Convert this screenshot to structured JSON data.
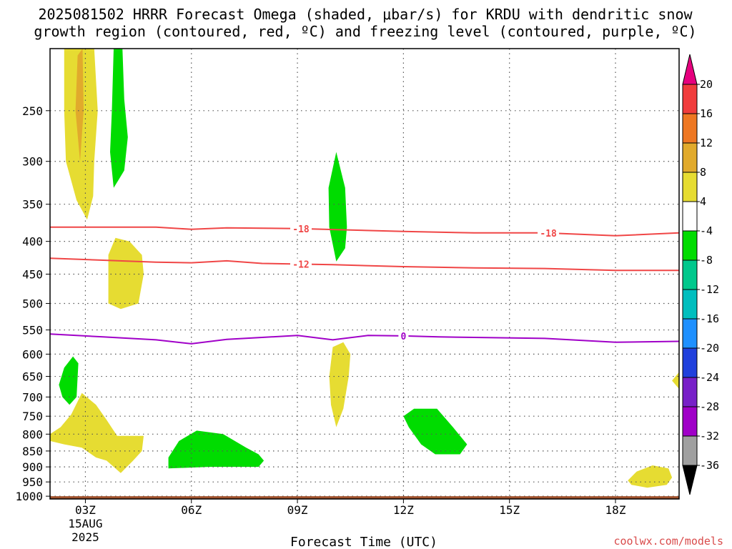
{
  "title": {
    "line1": "2025081502 HRRR Forecast Omega (shaded, μbar/s) for KRDU with dendritic snow",
    "line2": "growth region (contoured, red, ºC) and freezing level (contoured, purple, ºC)"
  },
  "credit": "coolwx.com/models",
  "chart_data": {
    "type": "contour",
    "title": "2025081502 HRRR Forecast Omega (shaded, μbar/s) for KRDU with dendritic snow growth region (contoured, red, ºC) and freezing level (contoured, purple, ºC)",
    "xlabel": "Forecast Time (UTC)",
    "ylabel": "",
    "x_unit": "forecast hour from 2025-08-15 02Z",
    "xlim": [
      0,
      17.8
    ],
    "ylim_hPa": [
      1010,
      200
    ],
    "y_scale": "log-pressure (inverted)",
    "grid": "dotted",
    "x_ticks": [
      {
        "hour": 1,
        "label": "03Z",
        "sub1": "15AUG",
        "sub2": "2025"
      },
      {
        "hour": 4,
        "label": "06Z",
        "sub1": "",
        "sub2": ""
      },
      {
        "hour": 7,
        "label": "09Z",
        "sub1": "",
        "sub2": ""
      },
      {
        "hour": 10,
        "label": "12Z",
        "sub1": "",
        "sub2": ""
      },
      {
        "hour": 13,
        "label": "15Z",
        "sub1": "",
        "sub2": ""
      },
      {
        "hour": 16,
        "label": "18Z",
        "sub1": "",
        "sub2": ""
      }
    ],
    "y_ticks": [
      {
        "value": 250,
        "label": "250"
      },
      {
        "value": 300,
        "label": "300"
      },
      {
        "value": 350,
        "label": "350"
      },
      {
        "value": 400,
        "label": "400"
      },
      {
        "value": 450,
        "label": "450"
      },
      {
        "value": 500,
        "label": "500"
      },
      {
        "value": 550,
        "label": "550"
      },
      {
        "value": 600,
        "label": "600"
      },
      {
        "value": 650,
        "label": "650"
      },
      {
        "value": 700,
        "label": "700"
      },
      {
        "value": 750,
        "label": "750"
      },
      {
        "value": 800,
        "label": "800"
      },
      {
        "value": 850,
        "label": "850"
      },
      {
        "value": 900,
        "label": "900"
      },
      {
        "value": 950,
        "label": "950"
      },
      {
        "value": 1000,
        "label": "1000"
      }
    ],
    "ground": {
      "top_hPa": 1000,
      "color": "#a0522d"
    },
    "omega_regions": [
      {
        "name": "upper-rising-1",
        "level": "4 to 8",
        "color": "#e6dc32",
        "points": [
          [
            0.4,
            200
          ],
          [
            1.25,
            200
          ],
          [
            1.35,
            250
          ],
          [
            1.25,
            300
          ],
          [
            1.22,
            340
          ],
          [
            1.05,
            370
          ],
          [
            0.75,
            345
          ],
          [
            0.45,
            300
          ],
          [
            0.4,
            250
          ]
        ]
      },
      {
        "name": "upper-rising-1-core",
        "level": "8 to 12",
        "color": "#e1aa2c",
        "points": [
          [
            0.78,
            205
          ],
          [
            0.92,
            200
          ],
          [
            0.95,
            250
          ],
          [
            0.85,
            300
          ],
          [
            0.72,
            250
          ]
        ]
      },
      {
        "name": "upper-sinking-1",
        "level": "-8 to -4",
        "color": "#00dc00",
        "points": [
          [
            1.8,
            200
          ],
          [
            2.05,
            200
          ],
          [
            2.1,
            240
          ],
          [
            2.2,
            275
          ],
          [
            2.1,
            310
          ],
          [
            1.95,
            320
          ],
          [
            1.8,
            330
          ],
          [
            1.7,
            290
          ],
          [
            1.75,
            250
          ]
        ]
      },
      {
        "name": "upper-sinking-2",
        "level": "-8 to -4",
        "color": "#00dc00",
        "points": [
          [
            8.1,
            290
          ],
          [
            8.35,
            330
          ],
          [
            8.4,
            380
          ],
          [
            8.35,
            410
          ],
          [
            8.1,
            430
          ],
          [
            7.9,
            380
          ],
          [
            7.88,
            330
          ]
        ]
      },
      {
        "name": "mid-rising-1",
        "level": "4 to 8",
        "color": "#e6dc32",
        "points": [
          [
            1.65,
            420
          ],
          [
            1.85,
            395
          ],
          [
            2.25,
            400
          ],
          [
            2.6,
            420
          ],
          [
            2.65,
            450
          ],
          [
            2.5,
            500
          ],
          [
            2.0,
            510
          ],
          [
            1.65,
            500
          ]
        ]
      },
      {
        "name": "mid-rising-2",
        "level": "4 to 8",
        "color": "#e6dc32",
        "points": [
          [
            8.0,
            585
          ],
          [
            8.3,
            575
          ],
          [
            8.5,
            600
          ],
          [
            8.45,
            650
          ],
          [
            8.3,
            730
          ],
          [
            8.1,
            780
          ],
          [
            7.95,
            720
          ],
          [
            7.9,
            650
          ]
        ]
      },
      {
        "name": "low-sinking-1",
        "level": "-8 to -4",
        "color": "#00dc00",
        "points": [
          [
            0.25,
            670
          ],
          [
            0.4,
            630
          ],
          [
            0.65,
            605
          ],
          [
            0.8,
            620
          ],
          [
            0.75,
            700
          ],
          [
            0.55,
            720
          ],
          [
            0.35,
            700
          ]
        ]
      },
      {
        "name": "low-rising-1",
        "level": "4 to 8",
        "color": "#e6dc32",
        "points": [
          [
            0.0,
            800
          ],
          [
            0.3,
            780
          ],
          [
            0.6,
            745
          ],
          [
            0.9,
            690
          ],
          [
            1.3,
            720
          ],
          [
            1.6,
            760
          ],
          [
            1.9,
            805
          ],
          [
            2.65,
            805
          ],
          [
            2.6,
            850
          ],
          [
            2.35,
            880
          ],
          [
            2.0,
            920
          ],
          [
            1.6,
            880
          ],
          [
            1.3,
            870
          ],
          [
            0.9,
            840
          ],
          [
            0.4,
            830
          ],
          [
            0.0,
            820
          ]
        ]
      },
      {
        "name": "low-sinking-2",
        "level": "-8 to -4",
        "color": "#00dc00",
        "points": [
          [
            3.35,
            870
          ],
          [
            3.65,
            820
          ],
          [
            4.15,
            790
          ],
          [
            4.9,
            800
          ],
          [
            5.55,
            840
          ],
          [
            5.9,
            860
          ],
          [
            6.05,
            880
          ],
          [
            5.9,
            900
          ],
          [
            4.5,
            900
          ],
          [
            3.35,
            905
          ]
        ]
      },
      {
        "name": "low-sinking-3",
        "level": "-8 to -4",
        "color": "#00dc00",
        "points": [
          [
            10.0,
            750
          ],
          [
            10.3,
            730
          ],
          [
            10.95,
            730
          ],
          [
            11.4,
            780
          ],
          [
            11.8,
            830
          ],
          [
            11.6,
            860
          ],
          [
            10.9,
            860
          ],
          [
            10.5,
            830
          ],
          [
            10.15,
            780
          ]
        ]
      },
      {
        "name": "low-rising-3",
        "level": "4 to 8",
        "color": "#e6dc32",
        "points": [
          [
            17.8,
            680
          ],
          [
            17.6,
            660
          ],
          [
            17.8,
            640
          ]
        ]
      },
      {
        "name": "low-rising-4",
        "level": "4 to 8",
        "color": "#e6dc32",
        "points": [
          [
            16.35,
            945
          ],
          [
            16.6,
            915
          ],
          [
            17.05,
            895
          ],
          [
            17.5,
            905
          ],
          [
            17.6,
            935
          ],
          [
            17.45,
            960
          ],
          [
            16.9,
            970
          ],
          [
            16.45,
            960
          ]
        ]
      }
    ],
    "isotherms": [
      {
        "name": "minus-18",
        "value": -18,
        "label": "-18",
        "color": "#f04646",
        "points": [
          [
            0,
            380
          ],
          [
            1.5,
            380
          ],
          [
            3.0,
            380
          ],
          [
            4.0,
            383
          ],
          [
            5.0,
            381
          ],
          [
            7.0,
            382
          ],
          [
            8.5,
            384
          ],
          [
            10.0,
            386
          ],
          [
            12.0,
            388
          ],
          [
            14.0,
            388
          ],
          [
            16.0,
            392
          ],
          [
            17.8,
            388
          ]
        ],
        "label_hours": [
          7.1,
          14.1
        ]
      },
      {
        "name": "minus-12",
        "value": -12,
        "label": "-12",
        "color": "#f04646",
        "points": [
          [
            0,
            425
          ],
          [
            1.5,
            428
          ],
          [
            3.0,
            431
          ],
          [
            4.0,
            432
          ],
          [
            5.0,
            429
          ],
          [
            6.0,
            433
          ],
          [
            8.0,
            435
          ],
          [
            10.0,
            438
          ],
          [
            12.0,
            440
          ],
          [
            14.0,
            441
          ],
          [
            16.0,
            444
          ],
          [
            17.8,
            444
          ]
        ],
        "label_hours": [
          7.1
        ]
      },
      {
        "name": "freezing-level",
        "value": 0,
        "label": "0",
        "color": "#a000c8",
        "points": [
          [
            0,
            558
          ],
          [
            1.5,
            564
          ],
          [
            3.0,
            570
          ],
          [
            4.0,
            578
          ],
          [
            5.0,
            569
          ],
          [
            6.0,
            565
          ],
          [
            7.0,
            561
          ],
          [
            8.0,
            570
          ],
          [
            9.0,
            561
          ],
          [
            10.0,
            562
          ],
          [
            11.0,
            564
          ],
          [
            12.0,
            565
          ],
          [
            14.0,
            567
          ],
          [
            16.0,
            575
          ],
          [
            17.8,
            573
          ]
        ],
        "label_hours": [
          10.0
        ]
      }
    ]
  },
  "colorbar": {
    "title": "",
    "labels": [
      "20",
      "16",
      "12",
      "8",
      "4",
      "-4",
      "-8",
      "-12",
      "-16",
      "-20",
      "-24",
      "-28",
      "-32",
      "-36"
    ],
    "segments": [
      {
        "range": ">20",
        "color": "#e6007e"
      },
      {
        "range": "16 to 20",
        "color": "#f03c3c"
      },
      {
        "range": "12 to 16",
        "color": "#ee7722"
      },
      {
        "range": "8 to 12",
        "color": "#e1aa2c"
      },
      {
        "range": "4 to 8",
        "color": "#e6dc32"
      },
      {
        "range": "-4 to 4",
        "color": "#ffffff"
      },
      {
        "range": "-8 to -4",
        "color": "#00dc00"
      },
      {
        "range": "-12 to -8",
        "color": "#00c88c"
      },
      {
        "range": "-16 to -12",
        "color": "#00bebe"
      },
      {
        "range": "-20 to -16",
        "color": "#1e90ff"
      },
      {
        "range": "-24 to -20",
        "color": "#2040dc"
      },
      {
        "range": "-28 to -24",
        "color": "#7820c8"
      },
      {
        "range": "-32 to -28",
        "color": "#a000c8"
      },
      {
        "range": "-36 to -32",
        "color": "#a0a0a0"
      },
      {
        "range": "<-36",
        "color": "#000000"
      }
    ]
  }
}
